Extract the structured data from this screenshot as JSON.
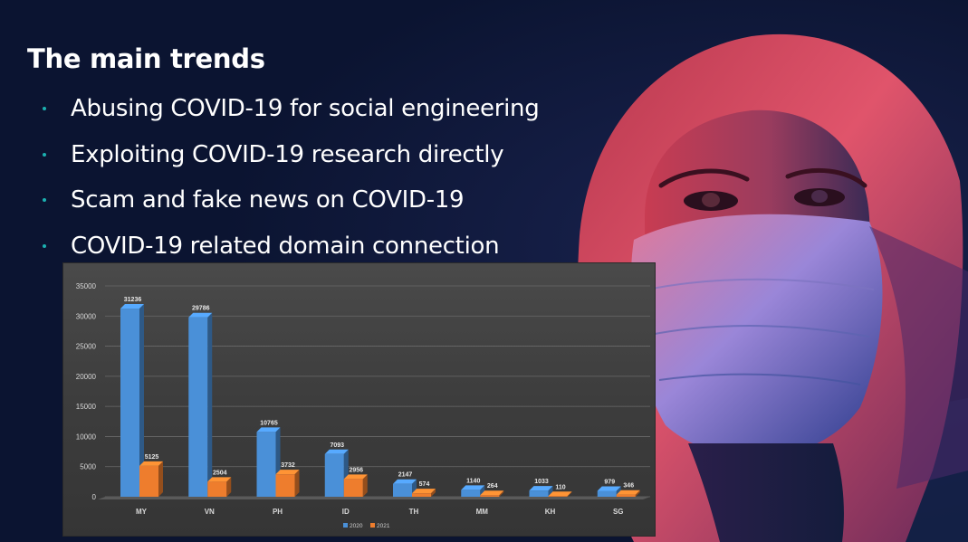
{
  "slide": {
    "title": "The main trends",
    "bullets": [
      "Abusing COVID-19 for social engineering",
      "Exploiting COVID-19 research directly",
      "Scam and fake news on COVID-19",
      "COVID-19 related domain connection"
    ],
    "bullet_color": "#1bb0b0",
    "background_color": "#0b1431"
  },
  "chart_data": {
    "type": "bar",
    "title": "",
    "xlabel": "",
    "ylabel": "",
    "categories": [
      "MY",
      "VN",
      "PH",
      "ID",
      "TH",
      "MM",
      "KH",
      "SG"
    ],
    "series": [
      {
        "name": "2020",
        "values": [
          31236,
          29786,
          10765,
          7093,
          2147,
          1140,
          1033,
          979
        ],
        "color": "#4a90d8"
      },
      {
        "name": "2021",
        "values": [
          5125,
          2504,
          3732,
          2956,
          574,
          264,
          110,
          346
        ],
        "color": "#ee7d2d"
      }
    ],
    "ylim": [
      0,
      35000
    ],
    "yticks": [
      "0",
      "5000",
      "10000",
      "15000",
      "20000",
      "25000",
      "30000",
      "35000"
    ],
    "grid": true,
    "legend_position": "bottom",
    "style": "3d-bar"
  }
}
